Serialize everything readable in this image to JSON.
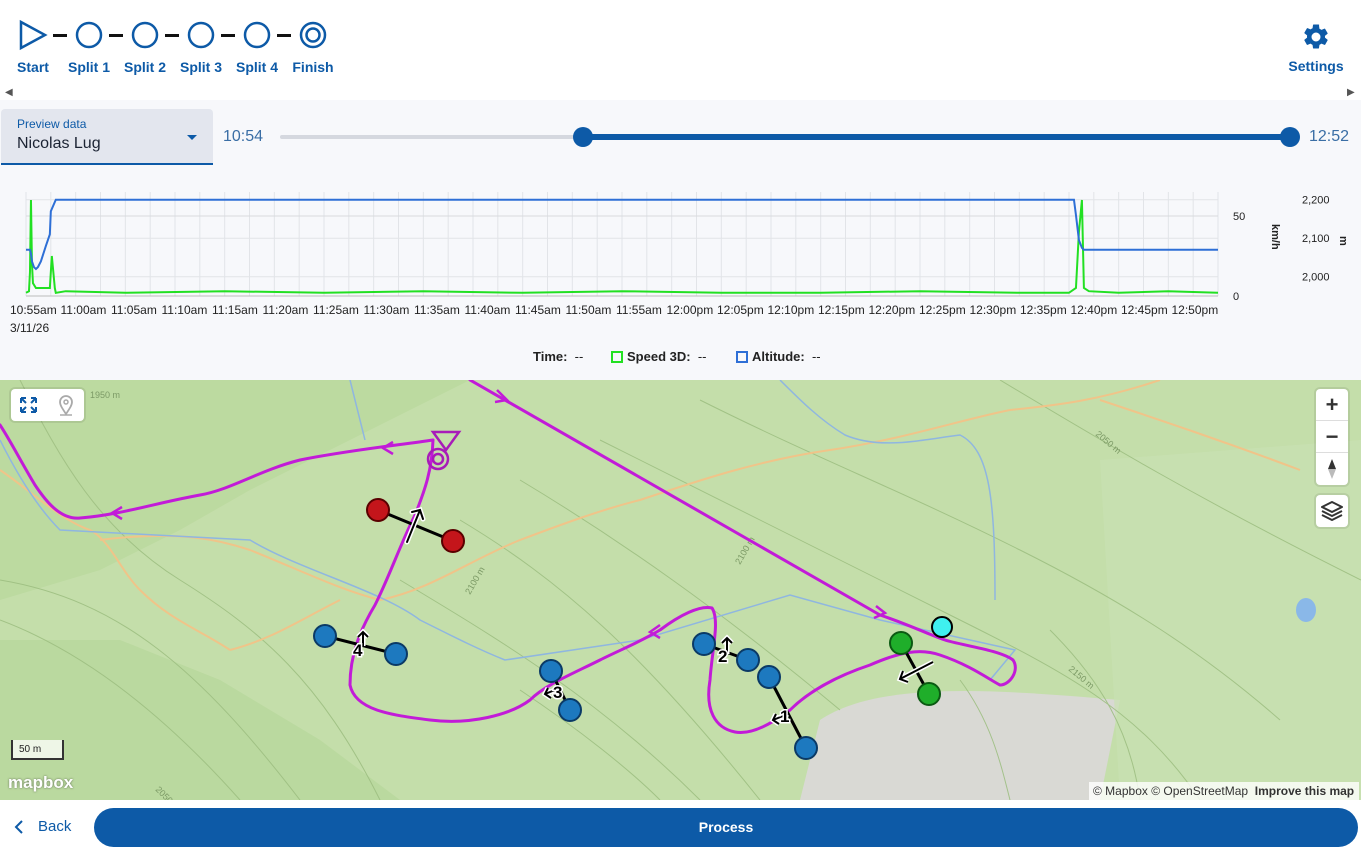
{
  "steps": [
    {
      "label": "Start",
      "icon": "play-triangle-icon"
    },
    {
      "label": "Split 1",
      "icon": "circle-icon"
    },
    {
      "label": "Split 2",
      "icon": "circle-icon"
    },
    {
      "label": "Split 3",
      "icon": "circle-icon"
    },
    {
      "label": "Split 4",
      "icon": "circle-icon"
    },
    {
      "label": "Finish",
      "icon": "target-icon"
    }
  ],
  "settings": {
    "label": "Settings",
    "icon": "gear-icon"
  },
  "preview": {
    "label": "Preview data",
    "value": "Nicolas Lug"
  },
  "time_range": {
    "start": "10:54",
    "end": "12:52",
    "selected_start_fraction": 0.3,
    "selected_end_fraction": 1.0
  },
  "chart_data": {
    "type": "line",
    "x_tick_labels": [
      "10:55am",
      "11:00am",
      "11:05am",
      "11:10am",
      "11:15am",
      "11:20am",
      "11:25am",
      "11:30am",
      "11:35am",
      "11:40am",
      "11:45am",
      "11:50am",
      "11:55am",
      "12:00pm",
      "12:05pm",
      "12:10pm",
      "12:15pm",
      "12:20pm",
      "12:25pm",
      "12:30pm",
      "12:35pm",
      "12:40pm",
      "12:45pm",
      "12:50pm"
    ],
    "x_date_label": "3/11/26",
    "y_left": {
      "label": "km/h",
      "ticks": [
        "0",
        "50"
      ],
      "range": [
        0,
        65
      ]
    },
    "y_right": {
      "label": "m",
      "ticks": [
        "2,000",
        "2,100",
        "2,200"
      ],
      "range": [
        1950,
        2220
      ]
    },
    "series": [
      {
        "name": "Speed 3D",
        "color": "#22e022",
        "axis": "left",
        "x_minutes": [
          0,
          3,
          4,
          5,
          6,
          7,
          10,
          20,
          22,
          24,
          26,
          29,
          30,
          40,
          100,
          200,
          300,
          400,
          500,
          600,
          700,
          800,
          900,
          1000,
          1050,
          1057,
          1060,
          1063,
          1065,
          1070,
          1100,
          1150,
          1200
        ],
        "values": [
          2,
          3,
          15,
          60,
          20,
          8,
          5,
          5,
          5,
          5,
          25,
          5,
          2,
          3,
          2,
          3,
          2,
          3,
          2,
          3,
          2,
          2,
          3,
          2,
          2,
          5,
          40,
          60,
          5,
          3,
          2,
          3,
          2
        ]
      },
      {
        "name": "Altitude",
        "color": "#2e6fd6",
        "axis": "right",
        "x_minutes": [
          0,
          4,
          5,
          6,
          8,
          10,
          12,
          15,
          20,
          24,
          25,
          30,
          100,
          200,
          300,
          400,
          500,
          600,
          700,
          800,
          900,
          1000,
          1055,
          1057,
          1060,
          1063,
          1065,
          1100,
          1150,
          1200
        ],
        "values": [
          2070,
          2070,
          2060,
          2040,
          2025,
          2020,
          2025,
          2040,
          2080,
          2110,
          2170,
          2200,
          2200,
          2200,
          2200,
          2200,
          2200,
          2200,
          2200,
          2200,
          2200,
          2200,
          2200,
          2160,
          2095,
          2075,
          2070,
          2070,
          2070,
          2070
        ]
      }
    ]
  },
  "legend": {
    "time_label": "Time:",
    "time_value": "--",
    "speed_label": "Speed 3D:",
    "speed_value": "--",
    "alt_label": "Altitude:",
    "alt_value": "--"
  },
  "map": {
    "contour_labels": [
      "1950 m",
      "2050 m",
      "2100 m",
      "2100 m",
      "2150 m",
      "2050 m"
    ],
    "scale_label": "50 m",
    "logo": "mapbox",
    "attribution": "© Mapbox © OpenStreetMap",
    "improve": "Improve this map",
    "split_labels": [
      "1",
      "2",
      "3",
      "4"
    ],
    "zoom_in": "+",
    "zoom_out": "−"
  },
  "footer": {
    "back_label": "Back",
    "process_label": "Process"
  }
}
